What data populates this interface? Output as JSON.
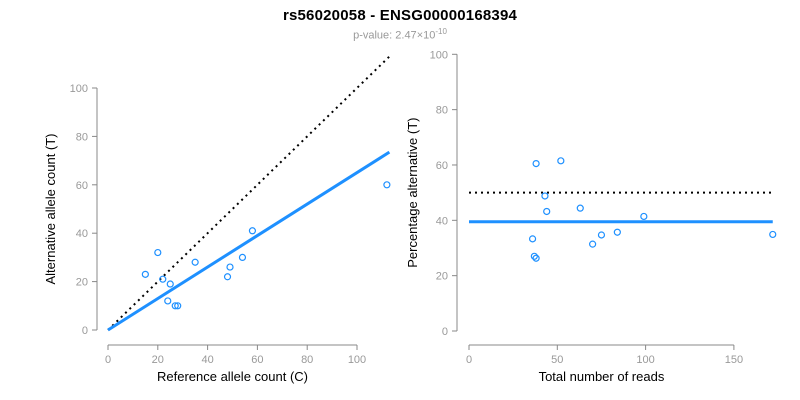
{
  "header": {
    "title": "rs56020058 - ENSG00000168394",
    "subtitle": {
      "prefix": "p-value: 2.47",
      "times": "×10",
      "exponent": "-10"
    }
  },
  "style": {
    "accent_blue": "#1E90FF",
    "line_black": "#000000",
    "axis_gray": "#888888",
    "tick_label_gray": "#999999",
    "subtitle_gray": "#999999"
  },
  "chart_data": [
    {
      "type": "scatter",
      "name": "allele-counts-scatter",
      "xlabel": "Reference allele count (C)",
      "ylabel": "Alternative allele count (T)",
      "xticks": [
        0,
        20,
        40,
        60,
        80,
        100
      ],
      "yticks": [
        0,
        20,
        40,
        60,
        80,
        100
      ],
      "xlim": [
        0,
        114
      ],
      "ylim": [
        0,
        114
      ],
      "grid": false,
      "point_color": "#1E90FF",
      "points": [
        [
          15,
          23
        ],
        [
          20,
          32
        ],
        [
          22,
          21
        ],
        [
          25,
          19
        ],
        [
          24,
          12
        ],
        [
          27,
          10
        ],
        [
          28,
          10
        ],
        [
          35,
          28
        ],
        [
          48,
          22
        ],
        [
          49,
          26
        ],
        [
          54,
          30
        ],
        [
          58,
          41
        ],
        [
          112,
          60
        ]
      ],
      "lines": [
        {
          "name": "identity-line-dotted",
          "style": "dotted",
          "color": "#000000",
          "width": 2,
          "x1": 0,
          "y1": 0,
          "x2": 113.5,
          "y2": 113.5
        },
        {
          "name": "fit-line-solid",
          "style": "solid",
          "color": "#1E90FF",
          "width": 3,
          "x1": 0,
          "y1": 0,
          "x2": 113,
          "y2": 73.5
        }
      ]
    },
    {
      "type": "scatter",
      "name": "percentage-vs-reads-scatter",
      "xlabel": "Total number of reads",
      "ylabel": "Percentage alternative (T)",
      "xticks": [
        0,
        50,
        100,
        150
      ],
      "yticks": [
        0,
        20,
        40,
        60,
        80,
        100
      ],
      "xlim": [
        0,
        175
      ],
      "ylim": [
        0,
        100
      ],
      "grid": false,
      "point_color": "#1E90FF",
      "points": [
        [
          38,
          60.5
        ],
        [
          52,
          61.5
        ],
        [
          43,
          48.8
        ],
        [
          44,
          43.2
        ],
        [
          36,
          33.3
        ],
        [
          37,
          27.0
        ],
        [
          38,
          26.3
        ],
        [
          63,
          44.4
        ],
        [
          70,
          31.4
        ],
        [
          75,
          34.7
        ],
        [
          84,
          35.7
        ],
        [
          99,
          41.4
        ],
        [
          172,
          34.9
        ]
      ],
      "lines": [
        {
          "name": "fifty-percent-line-dotted",
          "style": "dotted",
          "color": "#000000",
          "width": 2,
          "x1": 0,
          "y1": 50,
          "x2": 172,
          "y2": 50
        },
        {
          "name": "mean-percentage-line-solid",
          "style": "solid",
          "color": "#1E90FF",
          "width": 3,
          "x1": 0,
          "y1": 39.5,
          "x2": 172,
          "y2": 39.5
        }
      ]
    }
  ]
}
